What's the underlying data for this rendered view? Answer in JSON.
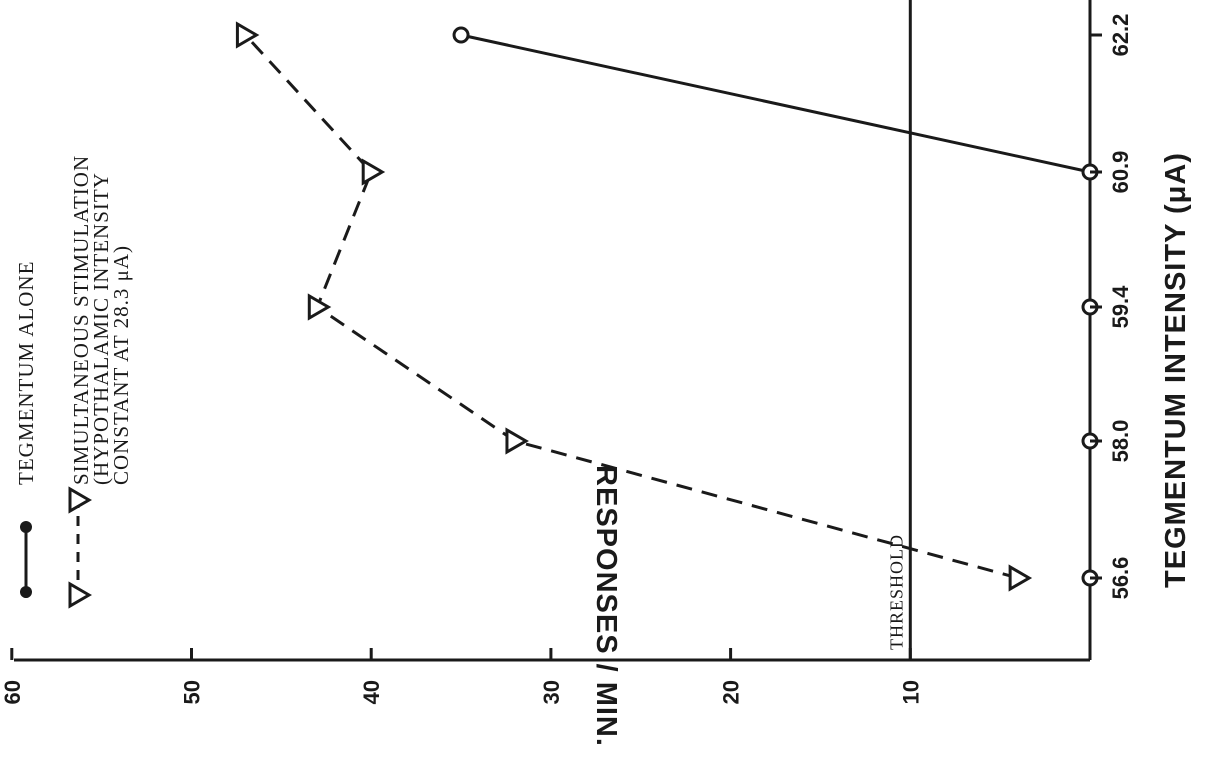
{
  "chart_data": {
    "type": "line",
    "orientation": "rotated 90 degrees (value axis horizontal across the top, category axis vertical on the right)",
    "xlabel": "TEGMENTUM INTENSITY (μA)",
    "ylabel": "RESPONSES / MIN.",
    "categories": [
      "56.6",
      "58.0",
      "59.4",
      "60.9",
      "62.2"
    ],
    "yticks": [
      "60",
      "50",
      "40",
      "30",
      "20",
      "10"
    ],
    "ylim": [
      0,
      60
    ],
    "grid": false,
    "legend_position": "top-right",
    "threshold": {
      "label": "THRESHOLD",
      "value": 10
    },
    "series": [
      {
        "name": "TEGMENTUM ALONE",
        "line_style": "solid",
        "marker": "circle",
        "values": [
          0,
          0,
          0,
          0,
          35
        ]
      },
      {
        "name": "SIMULTANEOUS STIMULATION (HYPOTHALAMIC INTENSITY CONSTANT AT 28.3 μA)",
        "name_lines": [
          "SIMULTANEOUS STIMULATION",
          "(HYPOTHALAMIC INTENSITY",
          "CONSTANT AT 28.3 μA)"
        ],
        "line_style": "dashed",
        "marker": "triangle",
        "values": [
          4,
          32,
          43,
          40,
          47
        ]
      }
    ]
  }
}
